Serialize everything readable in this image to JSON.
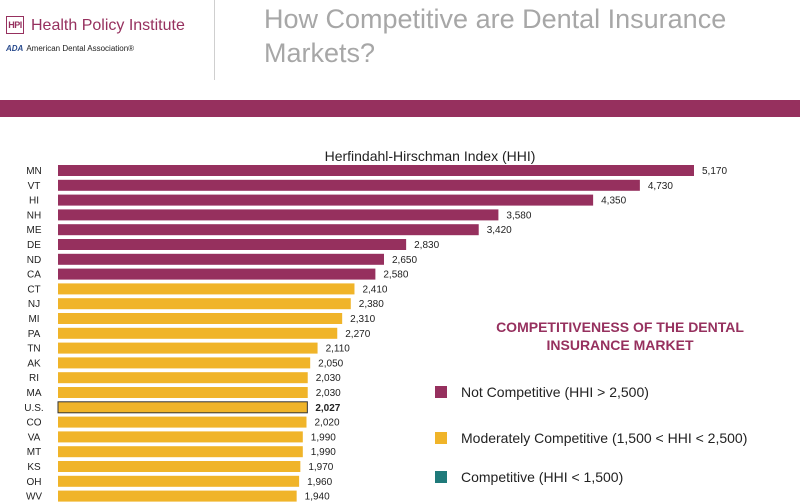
{
  "header": {
    "logo_mark": "HPI",
    "logo_name": "Health Policy Institute",
    "ada_abbrev": "ADA",
    "ada_name": "American Dental Association®",
    "title": "How Competitive are Dental Insurance Markets?"
  },
  "colors": {
    "brand": "#96305e",
    "not_competitive": "#96305e",
    "moderately_competitive": "#f0b429",
    "competitive": "#1f7a7a"
  },
  "legend": {
    "title": "COMPETITIVENESS OF THE DENTAL INSURANCE MARKET",
    "items": [
      {
        "label": "Not Competitive (HHI > 2,500)",
        "color": "#96305e"
      },
      {
        "label": "Moderately Competitive (1,500 < HHI < 2,500)",
        "color": "#f0b429"
      },
      {
        "label": "Competitive (HHI < 1,500)",
        "color": "#1f7a7a"
      }
    ]
  },
  "chart_data": {
    "type": "bar",
    "orientation": "horizontal",
    "title": "Herfindahl-Hirschman Index (HHI)",
    "categories": [
      "MN",
      "VT",
      "HI",
      "NH",
      "ME",
      "DE",
      "ND",
      "CA",
      "CT",
      "NJ",
      "MI",
      "PA",
      "TN",
      "AK",
      "RI",
      "MA",
      "U.S.",
      "CO",
      "VA",
      "MT",
      "KS",
      "OH",
      "WV"
    ],
    "values": [
      5170,
      4730,
      4350,
      3580,
      3420,
      2830,
      2650,
      2580,
      2410,
      2380,
      2310,
      2270,
      2110,
      2050,
      2030,
      2030,
      2027,
      2020,
      1990,
      1990,
      1970,
      1960,
      1940
    ],
    "value_labels": [
      "5,170",
      "4,730",
      "4,350",
      "3,580",
      "3,420",
      "2,830",
      "2,650",
      "2,580",
      "2,410",
      "2,380",
      "2,310",
      "2,270",
      "2,110",
      "2,050",
      "2,030",
      "2,030",
      "2,027",
      "2,020",
      "1,990",
      "1,990",
      "1,970",
      "1,960",
      "1,940"
    ],
    "categories_class": [
      "not",
      "not",
      "not",
      "not",
      "not",
      "not",
      "not",
      "not",
      "mod",
      "mod",
      "mod",
      "mod",
      "mod",
      "mod",
      "mod",
      "mod",
      "mod",
      "mod",
      "mod",
      "mod",
      "mod",
      "mod",
      "mod"
    ],
    "highlight": "U.S.",
    "xlim": [
      0,
      5170
    ]
  }
}
